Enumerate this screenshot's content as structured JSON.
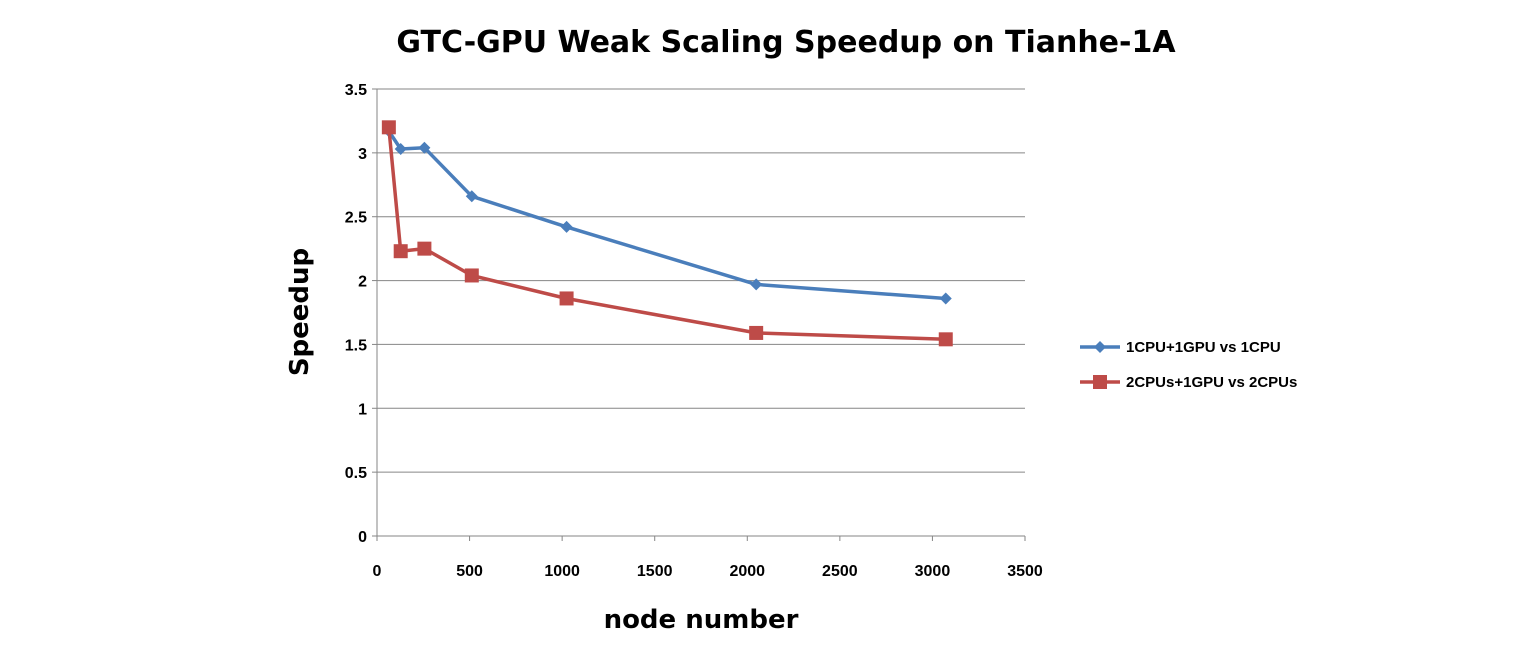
{
  "chart_data": {
    "type": "line",
    "title": "GTC-GPU Weak Scaling Speedup on Tianhe-1A",
    "xlabel": "node number",
    "ylabel": "Speedup",
    "xlim": [
      0,
      3500
    ],
    "ylim": [
      0,
      3.5
    ],
    "x_ticks": [
      "0",
      "500",
      "1000",
      "1500",
      "2000",
      "2500",
      "3000",
      "3500"
    ],
    "y_ticks": [
      "0",
      "0.5",
      "1",
      "1.5",
      "2",
      "2.5",
      "3",
      "3.5"
    ],
    "grid": "horizontal",
    "legend_position": "right",
    "series": [
      {
        "name": "1CPU+1GPU vs 1CPU",
        "color": "#4a7ebb",
        "marker": "diamond",
        "x": [
          64,
          128,
          256,
          512,
          1024,
          2048,
          3072
        ],
        "y": [
          3.17,
          3.03,
          3.04,
          2.66,
          2.42,
          1.97,
          1.86
        ]
      },
      {
        "name": "2CPUs+1GPU vs 2CPUs",
        "color": "#be4b48",
        "marker": "square",
        "x": [
          64,
          128,
          256,
          512,
          1024,
          2048,
          3072
        ],
        "y": [
          3.2,
          2.23,
          2.25,
          2.04,
          1.86,
          1.59,
          1.54
        ]
      }
    ]
  }
}
